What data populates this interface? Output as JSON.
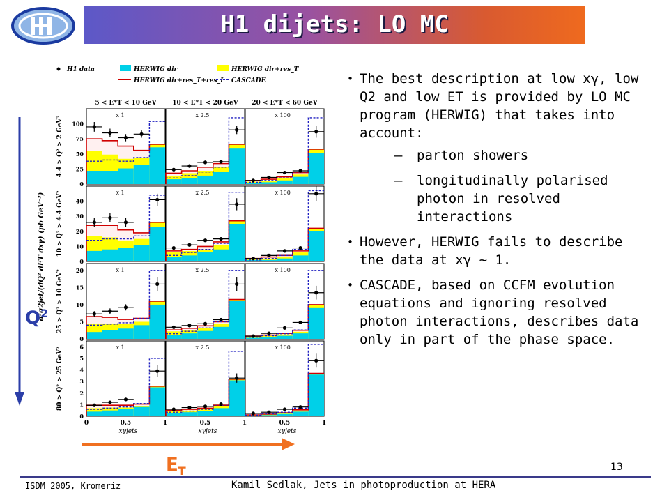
{
  "slide": {
    "title": "H1 dijets:  LO MC",
    "footer_left": "ISDM 2005, Kromeriz",
    "footer_center": "Kamil Sedlak,  Jets in photoproduction at HERA",
    "page_number": "13",
    "q2_label": "Q",
    "q2_sup": "2",
    "et_label": "E",
    "et_sub": "T",
    "accent_colors": {
      "title_start": "#5c58c8",
      "title_end": "#ef6a1e",
      "q2": "#2b3ea8",
      "et": "#f07020"
    }
  },
  "bullets": [
    {
      "text": "The best description at low xγ, low Q2 and low ET is provided by LO MC program (HERWIG) that takes into account:",
      "subs": [
        "parton showers",
        "longitudinally polarised photon in resolved interactions"
      ]
    },
    {
      "text": "However, HERWIG fails to describe the data at xγ ~ 1.",
      "subs": []
    },
    {
      "text": "CASCADE, based on CCFM evolution equations and ignoring resolved photon interactions, describes data only in part of the phase space.",
      "subs": []
    }
  ],
  "chart_data": {
    "type": "bar",
    "legend": [
      {
        "name": "H1 data",
        "style": "points",
        "color": "#000000"
      },
      {
        "name": "HERWIG dir",
        "style": "fill",
        "color": "#00d0e8"
      },
      {
        "name": "HERWIG dir+res_T",
        "style": "fill",
        "color": "#ffff00"
      },
      {
        "name": "HERWIG dir+res_T+res_L",
        "style": "line",
        "color": "#d00000"
      },
      {
        "name": "CASCADE",
        "style": "dashed",
        "color": "#2020c0"
      }
    ],
    "ylabel": "d³σ2jet/(dQ² dET dxγ)  (pb GeV⁻³)",
    "xlabel": "xγjets",
    "x_bins": [
      0,
      0.2,
      0.4,
      0.6,
      0.8,
      1.0
    ],
    "x_ticks": [
      "0",
      "0.5",
      "1"
    ],
    "columns": [
      "5 < E*T < 10 GeV",
      "10 < E*T < 20 GeV",
      "20 < E*T < 60 GeV"
    ],
    "rows": [
      {
        "label": "4.4 > Q² > 2 GeV²",
        "ylim": [
          0,
          125
        ],
        "yticks": [
          "0",
          "25",
          "50",
          "75",
          "100"
        ]
      },
      {
        "label": "10 > Q² > 4.4 GeV²",
        "ylim": [
          0,
          50
        ],
        "yticks": [
          "0",
          "10",
          "20",
          "30",
          "40"
        ]
      },
      {
        "label": "25 > Q² > 10 GeV²",
        "ylim": [
          0,
          22
        ],
        "yticks": [
          "0",
          "5",
          "10",
          "15",
          "20"
        ]
      },
      {
        "label": "80 > Q² > 25 GeV²",
        "ylim": [
          0,
          6.5
        ],
        "yticks": [
          "0",
          "1",
          "2",
          "3",
          "4",
          "5",
          "6"
        ]
      }
    ],
    "scales": [
      "x 1",
      "x 2.5",
      "x 100"
    ],
    "panels": [
      {
        "row": 0,
        "col": 0,
        "dir": [
          22,
          22,
          26,
          32,
          61
        ],
        "res_t": [
          55,
          49,
          42,
          44,
          66
        ],
        "full": [
          75,
          72,
          63,
          56,
          66
        ],
        "cascade": [
          38,
          40,
          38,
          44,
          104
        ],
        "data": [
          95,
          85,
          77,
          83,
          0
        ],
        "err": [
          8,
          7,
          6,
          6,
          0
        ]
      },
      {
        "row": 0,
        "col": 1,
        "dir": [
          8,
          10,
          14,
          20,
          60
        ],
        "res_t": [
          14,
          18,
          22,
          28,
          66
        ],
        "full": [
          18,
          22,
          28,
          34,
          66
        ],
        "cascade": [
          10,
          14,
          20,
          28,
          110
        ],
        "data": [
          24,
          30,
          36,
          37,
          90
        ],
        "err": [
          2,
          3,
          3,
          3,
          7
        ]
      },
      {
        "row": 0,
        "col": 2,
        "dir": [
          2,
          3,
          6,
          12,
          52
        ],
        "res_t": [
          4,
          6,
          10,
          16,
          58
        ],
        "full": [
          6,
          8,
          12,
          19,
          58
        ],
        "cascade": [
          3,
          6,
          10,
          20,
          110
        ],
        "data": [
          6,
          11,
          19,
          22,
          87
        ],
        "err": [
          1,
          1,
          2,
          2,
          10
        ]
      },
      {
        "row": 1,
        "col": 0,
        "dir": [
          7,
          8,
          9,
          11,
          23
        ],
        "res_t": [
          17,
          16,
          14,
          15,
          26
        ],
        "full": [
          24,
          24,
          21,
          19,
          26
        ],
        "cascade": [
          14,
          15,
          15,
          17,
          44
        ],
        "data": [
          26,
          29,
          26,
          0,
          41
        ],
        "err": [
          3,
          3,
          3,
          0,
          4
        ]
      },
      {
        "row": 1,
        "col": 1,
        "dir": [
          3,
          4,
          6,
          8,
          25
        ],
        "res_t": [
          6,
          7,
          8,
          11,
          27
        ],
        "full": [
          7,
          8,
          10,
          13,
          27
        ],
        "cascade": [
          4,
          6,
          8,
          12,
          46
        ],
        "data": [
          9,
          11,
          14,
          15,
          38
        ],
        "err": [
          1,
          1,
          1,
          1,
          4
        ]
      },
      {
        "row": 1,
        "col": 2,
        "dir": [
          1,
          1,
          2,
          4,
          20
        ],
        "res_t": [
          2,
          2,
          3,
          6,
          22
        ],
        "full": [
          2,
          3,
          4,
          7,
          22
        ],
        "cascade": [
          1,
          2,
          4,
          8,
          47
        ],
        "data": [
          2,
          4,
          7,
          9,
          45
        ],
        "err": [
          0.5,
          0.5,
          1,
          1,
          5
        ]
      },
      {
        "row": 2,
        "col": 0,
        "dir": [
          2,
          2.5,
          3,
          4,
          10
        ],
        "res_t": [
          4.5,
          4.5,
          4.3,
          5,
          11
        ],
        "full": [
          6.5,
          6.3,
          5.7,
          6,
          11
        ],
        "cascade": [
          4,
          4.3,
          4.7,
          6,
          20
        ],
        "data": [
          7.3,
          8.1,
          9.2,
          0,
          16
        ],
        "err": [
          0.8,
          0.8,
          0.9,
          0,
          2
        ]
      },
      {
        "row": 2,
        "col": 1,
        "dir": [
          1.2,
          1.6,
          2.3,
          3.5,
          11
        ],
        "res_t": [
          2.2,
          2.6,
          3.2,
          4.5,
          11.5
        ],
        "full": [
          2.6,
          3.1,
          3.8,
          5,
          11.5
        ],
        "cascade": [
          1.5,
          2.2,
          3.2,
          5,
          20
        ],
        "data": [
          3.4,
          3.9,
          4.4,
          5.6,
          16
        ],
        "err": [
          0.4,
          0.4,
          0.5,
          0.5,
          2
        ]
      },
      {
        "row": 2,
        "col": 2,
        "dir": [
          0.3,
          0.5,
          0.9,
          1.6,
          9
        ],
        "res_t": [
          0.6,
          0.9,
          1.3,
          2.1,
          10
        ],
        "full": [
          0.8,
          1.1,
          1.6,
          2.5,
          10
        ],
        "cascade": [
          0.5,
          0.9,
          1.5,
          2.6,
          20
        ],
        "data": [
          0.8,
          1.6,
          3.2,
          4.8,
          13.5
        ],
        "err": [
          0.2,
          0.3,
          0.4,
          0.5,
          2
        ]
      },
      {
        "row": 3,
        "col": 0,
        "dir": [
          0.4,
          0.5,
          0.6,
          0.8,
          2.5
        ],
        "res_t": [
          0.7,
          0.75,
          0.75,
          0.9,
          2.6
        ],
        "full": [
          0.95,
          0.95,
          0.95,
          1.05,
          2.6
        ],
        "cascade": [
          0.6,
          0.7,
          0.8,
          1.1,
          5
        ],
        "data": [
          0.95,
          1.2,
          1.45,
          0,
          3.9
        ],
        "err": [
          0.1,
          0.1,
          0.15,
          0,
          0.5
        ]
      },
      {
        "row": 3,
        "col": 1,
        "dir": [
          0.3,
          0.35,
          0.45,
          0.7,
          3.1
        ],
        "res_t": [
          0.45,
          0.5,
          0.6,
          0.85,
          3.2
        ],
        "full": [
          0.5,
          0.6,
          0.7,
          0.95,
          3.2
        ],
        "cascade": [
          0.35,
          0.45,
          0.6,
          0.9,
          5.6
        ],
        "data": [
          0.6,
          0.75,
          0.85,
          1.05,
          3.3
        ],
        "err": [
          0.08,
          0.08,
          0.1,
          0.1,
          0.4
        ]
      },
      {
        "row": 3,
        "col": 2,
        "dir": [
          0.05,
          0.1,
          0.2,
          0.4,
          3.6
        ],
        "res_t": [
          0.1,
          0.15,
          0.25,
          0.5,
          3.7
        ],
        "full": [
          0.12,
          0.18,
          0.3,
          0.55,
          3.7
        ],
        "cascade": [
          0.1,
          0.2,
          0.35,
          0.7,
          6.2
        ],
        "data": [
          0.25,
          0.35,
          0.6,
          0.8,
          4.8
        ],
        "err": [
          0.05,
          0.05,
          0.1,
          0.1,
          0.6
        ]
      }
    ]
  }
}
